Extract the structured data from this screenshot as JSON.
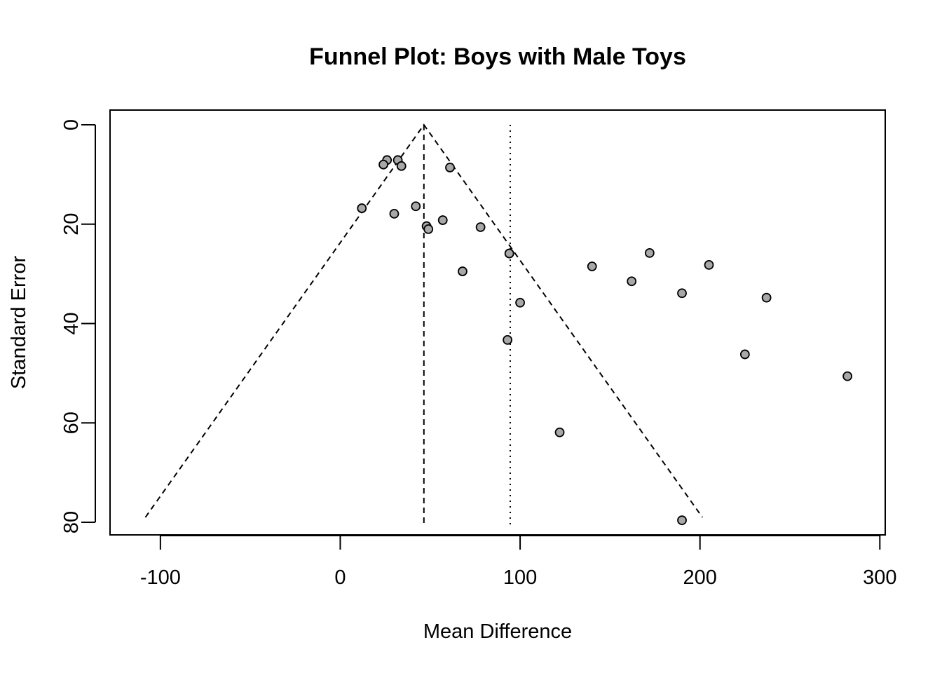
{
  "chart_data": {
    "type": "scatter",
    "title": "Funnel Plot: Boys with Male Toys",
    "xlabel": "Mean Difference",
    "ylabel": "Standard Error",
    "xlim": [
      -128,
      303
    ],
    "ylim": [
      0,
      82
    ],
    "y_reversed": true,
    "grid": false,
    "x_ticks": [
      "-100",
      "0",
      "100",
      "200",
      "300"
    ],
    "y_ticks": [
      "0",
      "20",
      "40",
      "60",
      "80"
    ],
    "points": [
      {
        "x": 26,
        "y": 7.1
      },
      {
        "x": 24,
        "y": 8.0
      },
      {
        "x": 32,
        "y": 7.1
      },
      {
        "x": 34,
        "y": 8.3
      },
      {
        "x": 61,
        "y": 8.6
      },
      {
        "x": 12,
        "y": 16.8
      },
      {
        "x": 42,
        "y": 16.4
      },
      {
        "x": 30,
        "y": 17.9
      },
      {
        "x": 57,
        "y": 19.2
      },
      {
        "x": 48,
        "y": 20.4
      },
      {
        "x": 49,
        "y": 21.0
      },
      {
        "x": 78,
        "y": 20.6
      },
      {
        "x": 94,
        "y": 25.9
      },
      {
        "x": 68,
        "y": 29.5
      },
      {
        "x": 100,
        "y": 35.8
      },
      {
        "x": 93,
        "y": 43.3
      },
      {
        "x": 140,
        "y": 28.5
      },
      {
        "x": 172,
        "y": 25.8
      },
      {
        "x": 162,
        "y": 31.5
      },
      {
        "x": 190,
        "y": 33.9
      },
      {
        "x": 205,
        "y": 28.2
      },
      {
        "x": 237,
        "y": 34.8
      },
      {
        "x": 225,
        "y": 46.2
      },
      {
        "x": 282,
        "y": 50.6
      },
      {
        "x": 122,
        "y": 61.9
      },
      {
        "x": 190,
        "y": 79.6
      }
    ],
    "center_estimate": 46.5,
    "reference_line": 94.5,
    "funnel_max_se": 79,
    "funnel_multiplier": 1.96,
    "colors": {
      "point_fill": "#a8a8a8",
      "point_stroke": "#000000",
      "lines": "#000000"
    }
  }
}
